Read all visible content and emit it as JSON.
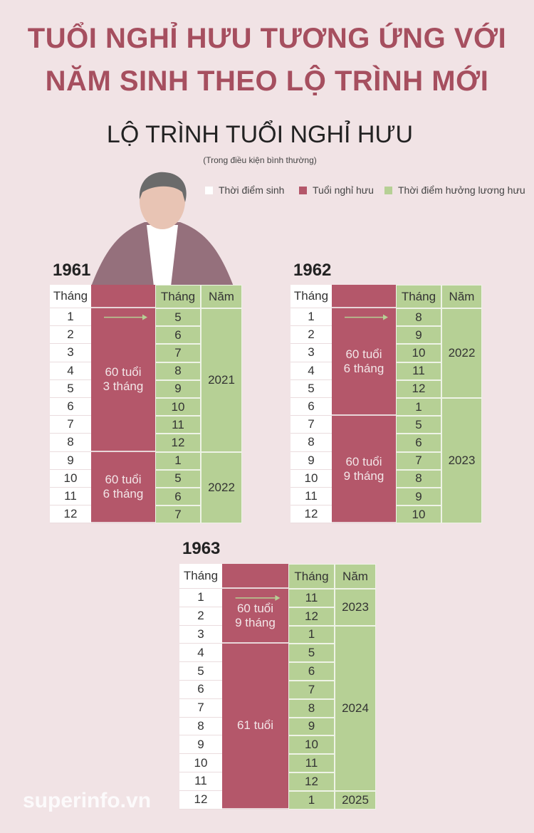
{
  "header": {
    "title_lines": [
      "TUỔI NGHỈ HƯU TƯƠNG ỨNG VỚI",
      "NĂM SINH THEO LỘ TRÌNH MỚI"
    ],
    "subtitle": "LỘ TRÌNH TUỔI NGHỈ HƯU",
    "note": "(Trong điều kiện bình thường)"
  },
  "legend": [
    "Thời điểm sinh",
    "Tuổi nghỉ hưu",
    "Thời điểm hưởng lương hưu"
  ],
  "tables": [
    {
      "year": 1961,
      "headers": [
        "Tháng",
        "Tháng",
        "Năm"
      ],
      "birth_months": [
        1,
        2,
        3,
        4,
        5,
        6,
        7,
        8,
        9,
        10,
        11,
        12
      ],
      "ages": [
        [
          "60 tuổi",
          "3 tháng"
        ],
        [
          "60 tuổi",
          "6 tháng"
        ]
      ],
      "pension_months": [
        5,
        6,
        7,
        8,
        9,
        10,
        11,
        12,
        1,
        5,
        6,
        7
      ],
      "pension_years": [
        2021,
        2022
      ]
    },
    {
      "year": 1962,
      "headers": [
        "Tháng",
        "Tháng",
        "Năm"
      ],
      "birth_months": [
        1,
        2,
        3,
        4,
        5,
        6,
        7,
        8,
        9,
        10,
        11,
        12
      ],
      "ages": [
        [
          "60 tuổi",
          "6 tháng"
        ],
        [
          "60 tuổi",
          "9 tháng"
        ]
      ],
      "pension_months": [
        8,
        9,
        10,
        11,
        12,
        1,
        5,
        6,
        7,
        8,
        9,
        10
      ],
      "pension_years": [
        2022,
        2023
      ]
    },
    {
      "year": 1963,
      "headers": [
        "Tháng",
        "Tháng",
        "Năm"
      ],
      "birth_months": [
        1,
        2,
        3,
        4,
        5,
        6,
        7,
        8,
        9,
        10,
        11,
        12
      ],
      "ages": [
        [
          "60 tuổi",
          "9 tháng"
        ],
        [
          "61 tuổi"
        ]
      ],
      "pension_months": [
        11,
        12,
        1,
        5,
        6,
        7,
        8,
        9,
        10,
        11,
        12,
        1
      ],
      "pension_years": [
        2023,
        2024,
        2025
      ]
    }
  ],
  "watermark": "superinfo.vn"
}
